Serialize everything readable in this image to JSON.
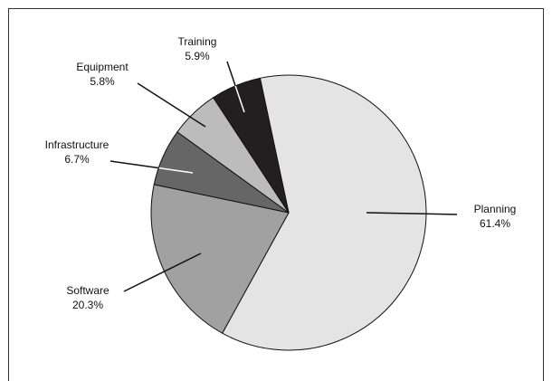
{
  "chart_data": {
    "type": "pie",
    "categories": [
      "Planning",
      "Software",
      "Infrastructure",
      "Equipment",
      "Training"
    ],
    "values": [
      61.4,
      20.3,
      6.7,
      5.8,
      5.9
    ],
    "value_labels": [
      "61.4%",
      "20.3%",
      "6.7%",
      "5.8%",
      "5.9%"
    ],
    "colors": [
      "#e4e4e4",
      "#a1a1a1",
      "#666666",
      "#bcbcbc",
      "#231f20"
    ]
  }
}
